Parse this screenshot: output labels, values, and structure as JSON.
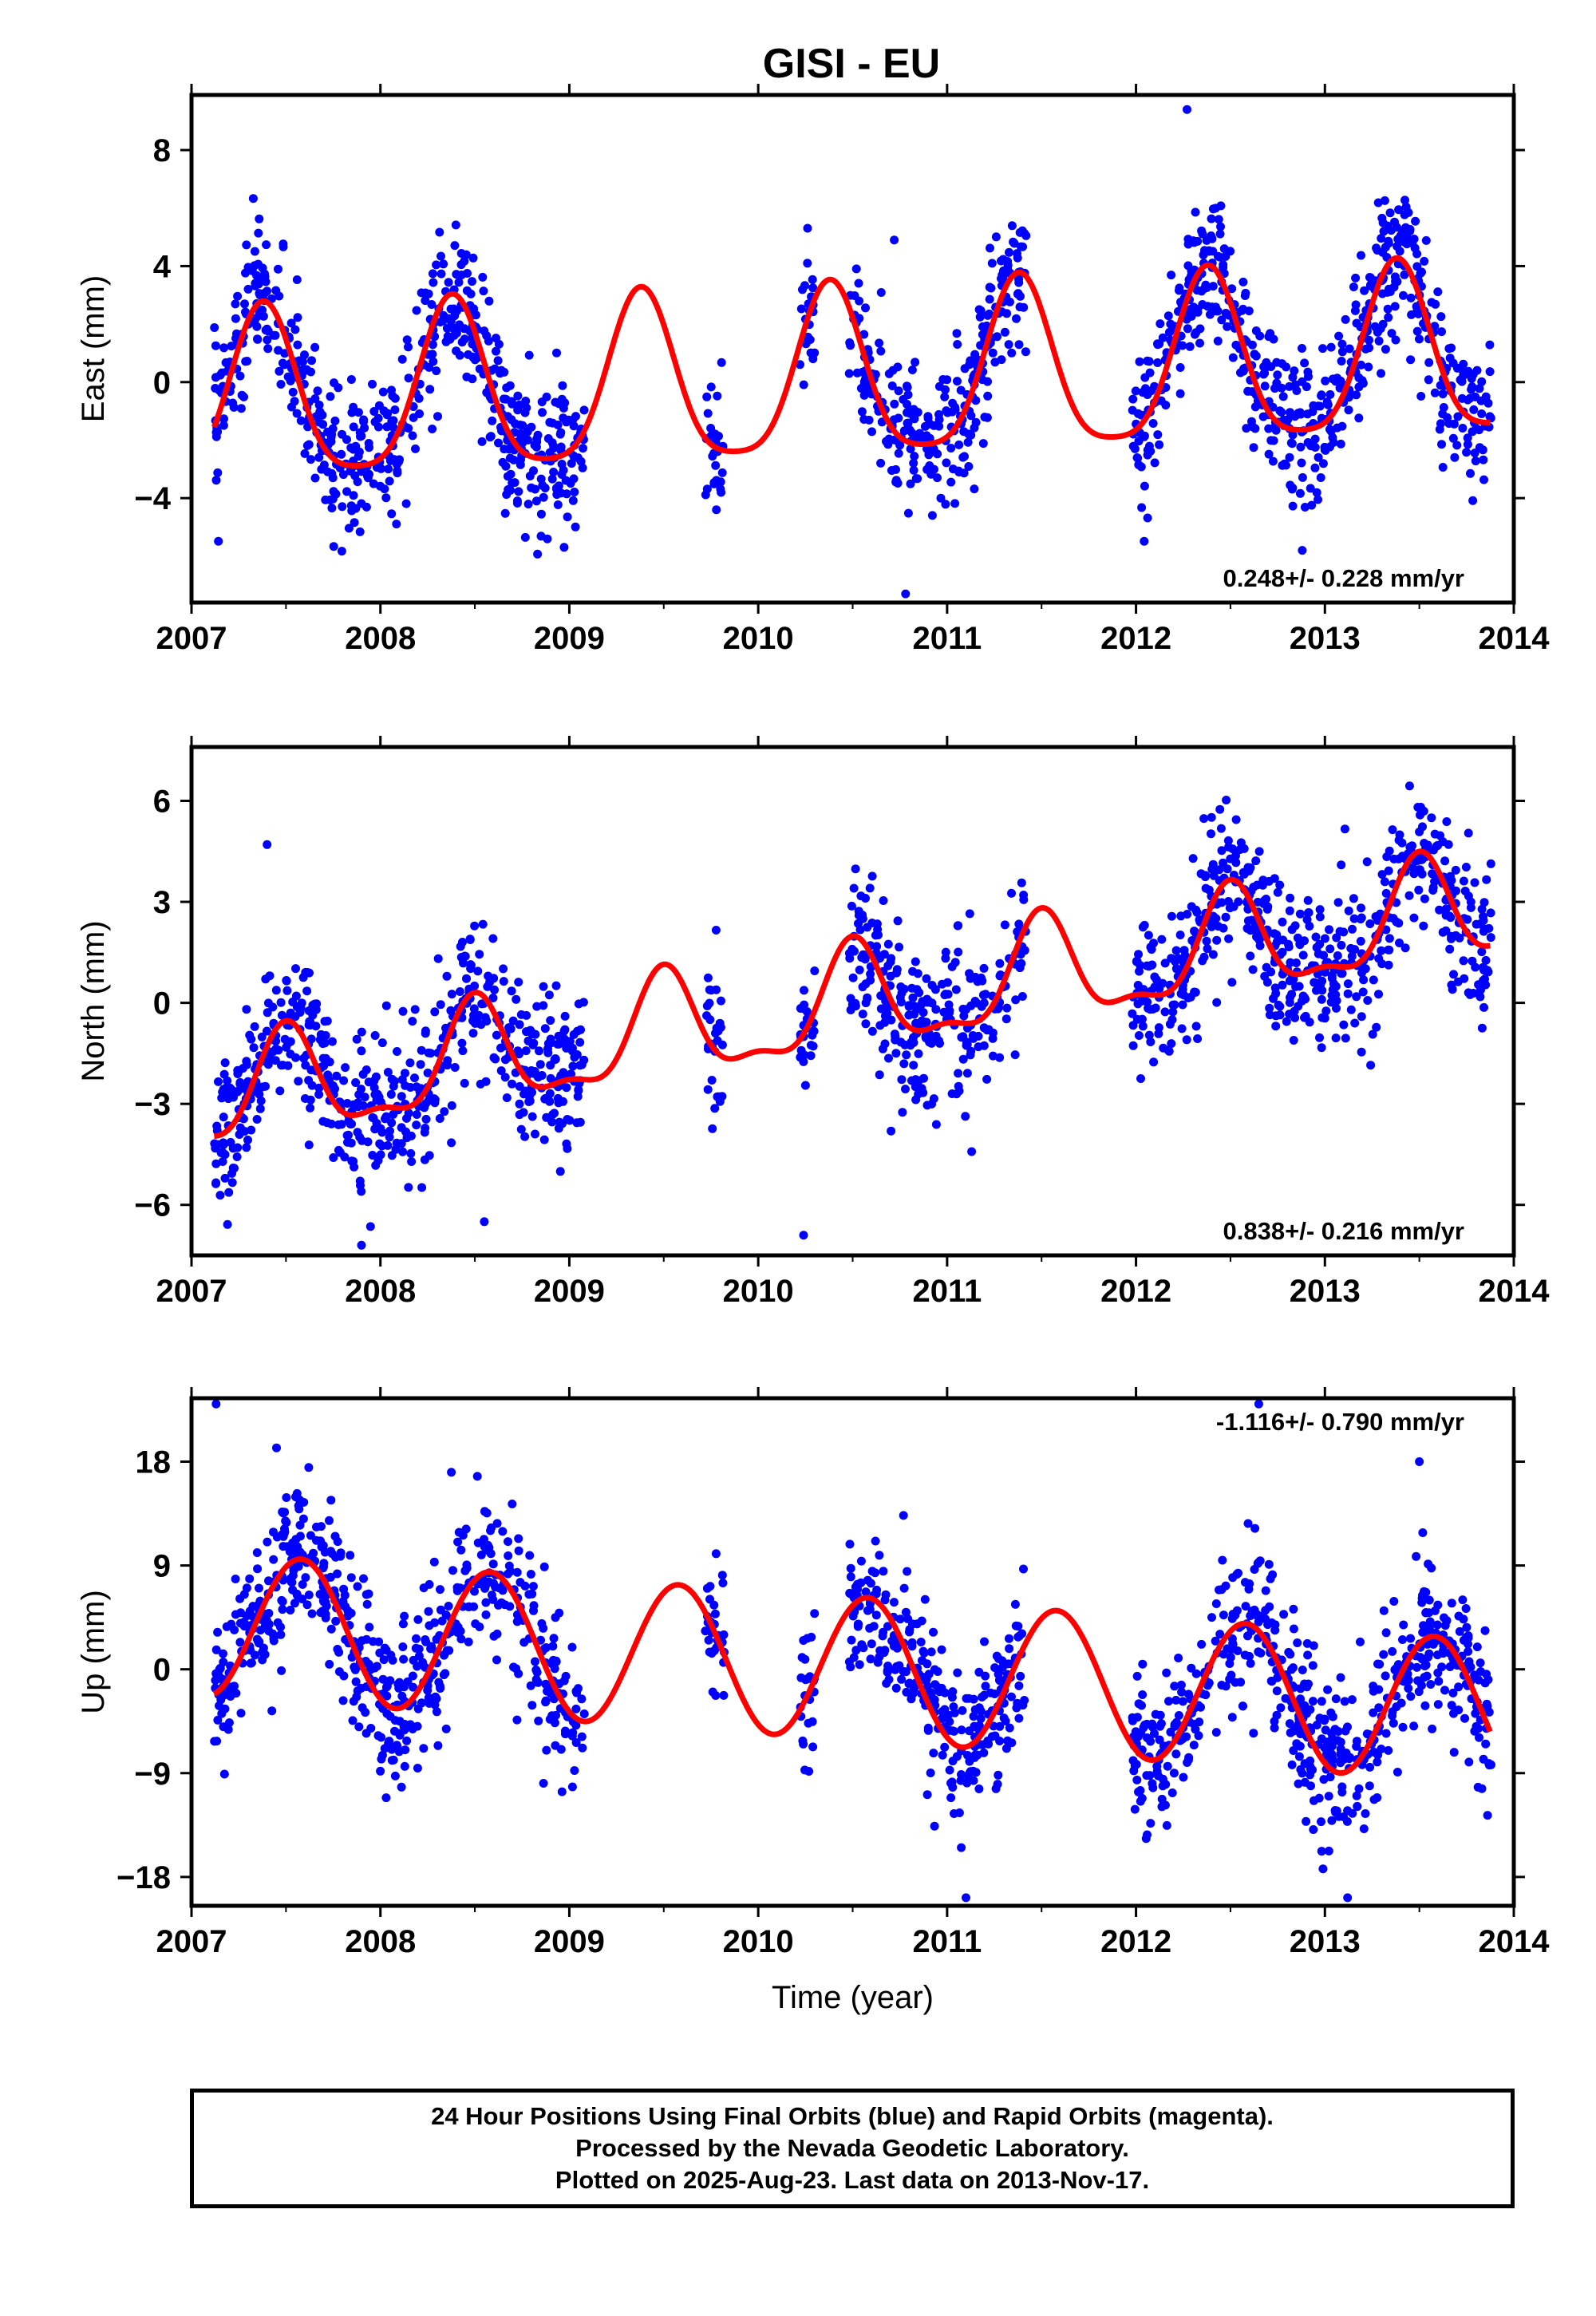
{
  "title": "GISI - EU",
  "colors": {
    "points": "#0000ff",
    "fit": "#ff0000",
    "frame": "#000000"
  },
  "footer": {
    "line1": "24 Hour Positions Using Final Orbits (blue) and Rapid Orbits (magenta).",
    "line2": "Processed by the Nevada Geodetic Laboratory.",
    "line3": "Plotted on 2025-Aug-23. Last data on 2013-Nov-17."
  },
  "chart_data": [
    {
      "type": "scatter",
      "panel": "east",
      "ylabel": "East (mm)",
      "xlabel": "",
      "xlim": [
        2007,
        2014
      ],
      "ylim": [
        -7.6,
        9.9
      ],
      "xticks": [
        2007,
        2008,
        2009,
        2010,
        2011,
        2012,
        2013,
        2014
      ],
      "yticks": [
        -4,
        0,
        4,
        8
      ],
      "ytick_labels": [
        "−4",
        "0",
        "4",
        "8"
      ],
      "rate": "0.248+/- 0.228 mm/yr",
      "rate_position": "bottom-right",
      "fit_model": {
        "intercept": -0.8,
        "ref_year": 2007,
        "trend": 0.248,
        "annual_amp": 2.9,
        "annual_peak": 0.38,
        "semi_amp": 0.6,
        "semi_peak": 0.38
      },
      "data_segments": [
        [
          2007.12,
          2009.08
        ],
        [
          2009.72,
          2009.82
        ],
        [
          2010.22,
          2010.3
        ],
        [
          2010.48,
          2011.42
        ],
        [
          2011.98,
          2013.88
        ]
      ],
      "scatter_sd": 1.25,
      "scatter_density_per_year": 300,
      "outliers": [
        [
          2010.78,
          -7.3
        ],
        [
          2012.27,
          9.4
        ],
        [
          2012.88,
          -5.8
        ],
        [
          2010.72,
          4.9
        ]
      ]
    },
    {
      "type": "scatter",
      "panel": "north",
      "ylabel": "North (mm)",
      "xlabel": "",
      "xlim": [
        2007,
        2014
      ],
      "ylim": [
        -7.5,
        7.6
      ],
      "xticks": [
        2007,
        2008,
        2009,
        2010,
        2011,
        2012,
        2013,
        2014
      ],
      "yticks": [
        -6,
        -3,
        0,
        3,
        6
      ],
      "ytick_labels": [
        "−6",
        "−3",
        "0",
        "3",
        "6"
      ],
      "rate": "0.838+/- 0.216 mm/yr",
      "rate_position": "bottom-right",
      "fit_model": {
        "intercept": -3.0,
        "ref_year": 2007,
        "trend": 0.838,
        "annual_amp": 1.5,
        "annual_peak": 0.5,
        "semi_amp": 0.55,
        "semi_peak": 0.5
      },
      "data_segments": [
        [
          2007.12,
          2009.08
        ],
        [
          2009.72,
          2009.82
        ],
        [
          2010.22,
          2010.3
        ],
        [
          2010.48,
          2011.42
        ],
        [
          2011.98,
          2013.88
        ]
      ],
      "scatter_sd": 1.15,
      "scatter_density_per_year": 300,
      "outliers": [
        [
          2007.4,
          4.7
        ],
        [
          2010.24,
          -6.9
        ],
        [
          2007.9,
          -7.2
        ],
        [
          2008.55,
          -6.5
        ]
      ]
    },
    {
      "type": "scatter",
      "panel": "up",
      "ylabel": "Up (mm)",
      "xlabel": "Time (year)",
      "xlim": [
        2007,
        2014
      ],
      "ylim": [
        -20.5,
        23.5
      ],
      "xticks": [
        2007,
        2008,
        2009,
        2010,
        2011,
        2012,
        2013,
        2014
      ],
      "yticks": [
        -18,
        -9,
        0,
        9,
        18
      ],
      "ytick_labels": [
        "−18",
        "−9",
        "0",
        "9",
        "18"
      ],
      "rate": "-1.116+/- 0.790 mm/yr",
      "rate_position": "top-right",
      "fit_model": {
        "intercept": 4.0,
        "ref_year": 2007,
        "trend": -1.116,
        "annual_amp": 6.2,
        "annual_peak": 0.58,
        "semi_amp": 0.0,
        "semi_peak": 0.58
      },
      "data_segments": [
        [
          2007.12,
          2009.08
        ],
        [
          2009.72,
          2009.82
        ],
        [
          2010.22,
          2010.3
        ],
        [
          2010.48,
          2011.42
        ],
        [
          2011.98,
          2013.88
        ]
      ],
      "scatter_sd": 3.4,
      "scatter_density_per_year": 300,
      "outliers": [
        [
          2007.13,
          23.0
        ],
        [
          2012.65,
          23.0
        ],
        [
          2013.5,
          18.0
        ],
        [
          2011.1,
          -19.8
        ],
        [
          2013.12,
          -19.8
        ],
        [
          2007.45,
          19.2
        ]
      ]
    }
  ]
}
